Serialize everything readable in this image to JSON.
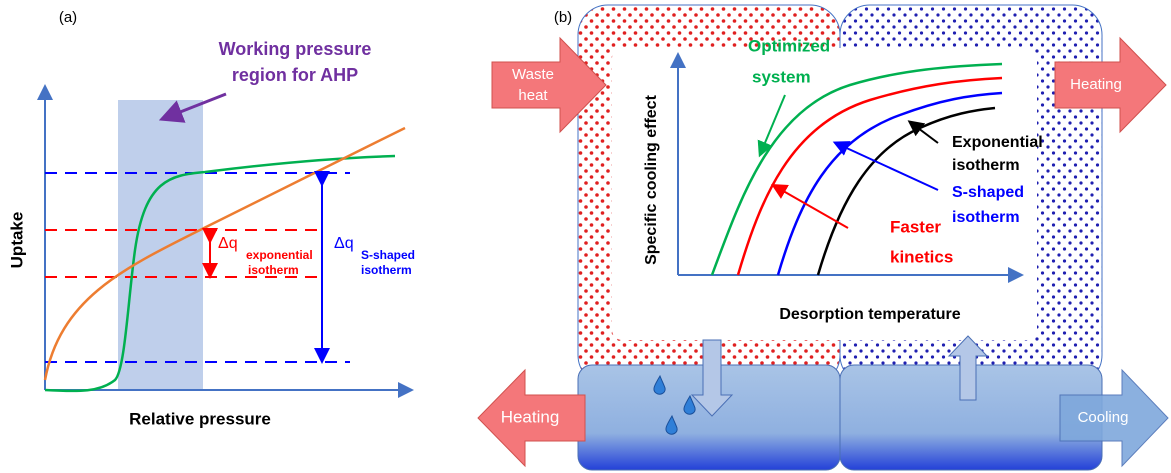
{
  "panel_a": {
    "label": "(a)",
    "title_line1": "Working pressure",
    "title_line2": "region for AHP",
    "y_label": "Uptake",
    "x_label": "Relative pressure",
    "delta_exp": {
      "symbol": "Δq",
      "sub1": "exponential",
      "sub2": "isotherm"
    },
    "delta_s": {
      "symbol": "Δq",
      "sub1": "S-shaped",
      "sub2": "isotherm"
    }
  },
  "panel_b": {
    "label": "(b)",
    "waste_heat": [
      "Waste",
      "heat"
    ],
    "heating_top": "Heating",
    "heating_bottom": "Heating",
    "cooling": "Cooling",
    "y_label": "Specific cooling effect",
    "x_label": "Desorption temperature",
    "optimized": [
      "Optimized",
      "system"
    ],
    "faster": [
      "Faster",
      "kinetics"
    ],
    "exponential": [
      "Exponential",
      "isotherm"
    ],
    "s_shaped": [
      "S-shaped",
      "isotherm"
    ]
  }
}
